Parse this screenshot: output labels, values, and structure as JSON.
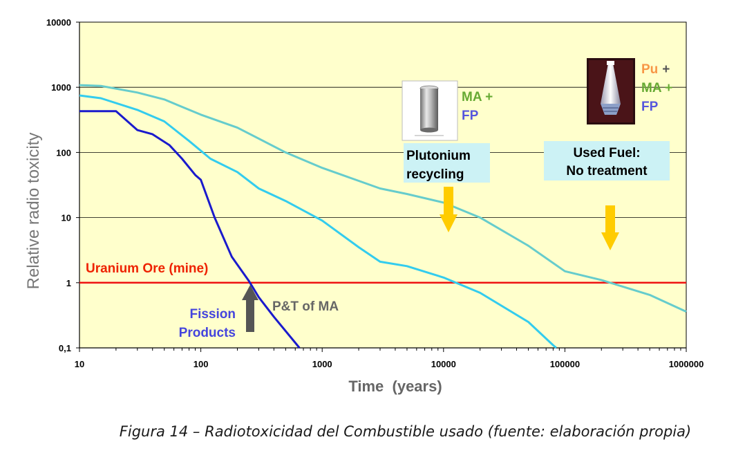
{
  "chart_data": {
    "type": "line",
    "xscale": "log",
    "yscale": "log",
    "xlim": [
      10,
      1000000
    ],
    "ylim": [
      0.1,
      10000
    ],
    "xlabel": "Time  (years)",
    "ylabel": "Relative radio toxicity",
    "x_ticks": [
      "10",
      "100",
      "1000",
      "10000",
      "100000",
      "1000000"
    ],
    "y_ticks": [
      "0,1",
      "1",
      "10",
      "100",
      "1000",
      "10000"
    ],
    "grid": true,
    "background": "#ffffcc",
    "series": [
      {
        "name": "Used Fuel: No treatment",
        "color": "#66cccc",
        "points": [
          [
            10,
            1080
          ],
          [
            15,
            1050
          ],
          [
            30,
            830
          ],
          [
            50,
            650
          ],
          [
            100,
            380
          ],
          [
            200,
            240
          ],
          [
            500,
            100
          ],
          [
            1000,
            58
          ],
          [
            3000,
            28
          ],
          [
            5000,
            23
          ],
          [
            10000,
            17
          ],
          [
            20000,
            10
          ],
          [
            50000,
            3.7
          ],
          [
            100000,
            1.5
          ],
          [
            200000,
            1.1
          ],
          [
            500000,
            0.65
          ],
          [
            1000000,
            0.36
          ]
        ]
      },
      {
        "name": "Plutonium recycling",
        "color": "#33ccee",
        "points": [
          [
            10,
            750
          ],
          [
            15,
            680
          ],
          [
            30,
            450
          ],
          [
            50,
            300
          ],
          [
            80,
            150
          ],
          [
            120,
            80
          ],
          [
            200,
            50
          ],
          [
            300,
            28
          ],
          [
            500,
            18
          ],
          [
            1000,
            9
          ],
          [
            2000,
            3.5
          ],
          [
            3000,
            2.1
          ],
          [
            5000,
            1.8
          ],
          [
            10000,
            1.2
          ],
          [
            20000,
            0.7
          ],
          [
            50000,
            0.25
          ],
          [
            80000,
            0.11
          ],
          [
            85000,
            0.1
          ]
        ]
      },
      {
        "name": "Fission Products",
        "color": "#1a1acc",
        "points": [
          [
            10,
            430
          ],
          [
            20,
            430
          ],
          [
            30,
            220
          ],
          [
            40,
            190
          ],
          [
            55,
            130
          ],
          [
            70,
            80
          ],
          [
            90,
            45
          ],
          [
            100,
            38
          ],
          [
            130,
            10
          ],
          [
            180,
            2.5
          ],
          [
            250,
            1.05
          ],
          [
            300,
            0.6
          ],
          [
            400,
            0.3
          ],
          [
            600,
            0.12
          ],
          [
            650,
            0.1
          ]
        ]
      }
    ],
    "reference_line": {
      "y": 1,
      "label": "Uranium Ore (mine)",
      "color": "#ee1111"
    },
    "annotations": {
      "fission_products": [
        "Fission",
        "Products"
      ],
      "pt_of_ma": "P&T of MA",
      "plutonium_recycling": [
        "Plutonium",
        "recycling"
      ],
      "used_fuel": [
        "Used Fuel:",
        "No treatment"
      ],
      "ma_fp": {
        "ma": "MA +",
        "fp": "FP"
      },
      "pu_ma_fp": {
        "pu": "Pu",
        "plus": "+",
        "ma": "MA +",
        "fp": "FP"
      }
    }
  },
  "caption": "Figura 14 – Radiotoxicidad del Combustible usado (fuente: elaboración propia)"
}
